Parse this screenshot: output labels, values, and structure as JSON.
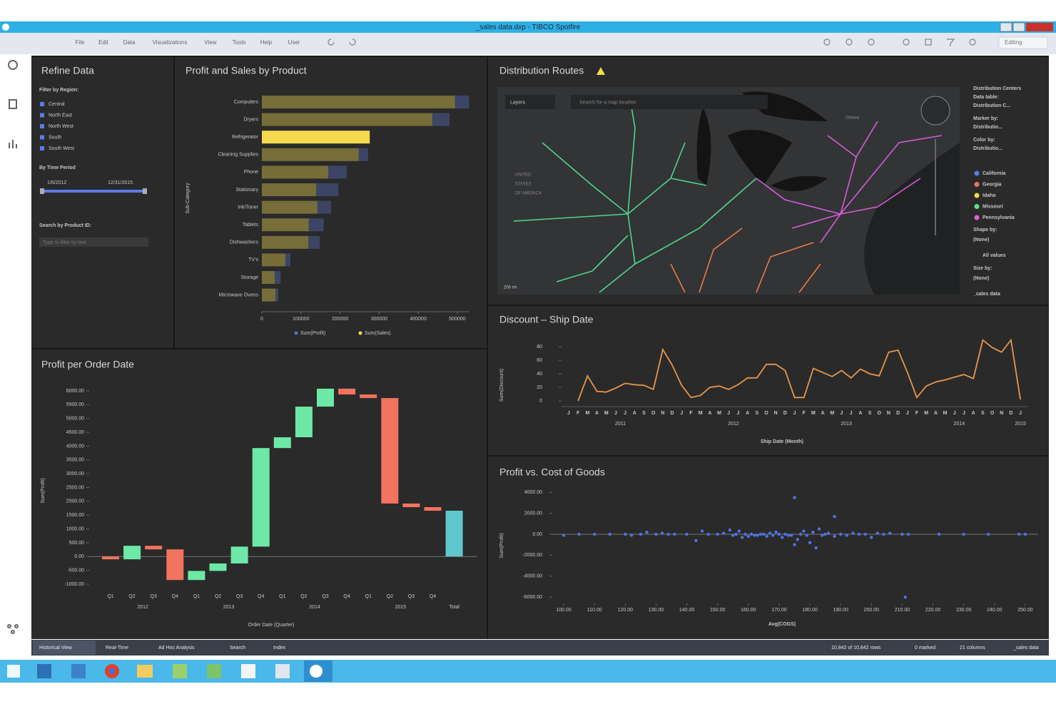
{
  "window": {
    "title": "_sales data.dxp - TIBCO Spotfire",
    "menu": [
      "File",
      "Edit",
      "Data",
      "Visualizations",
      "View",
      "Tools",
      "Help",
      "User"
    ],
    "mode": "Editing"
  },
  "refine": {
    "title": "Refine Data",
    "region_label": "Filter by Region:",
    "regions": [
      "Central",
      "North East",
      "North West",
      "South",
      "South West"
    ],
    "time_label": "By Time Period",
    "start": "1/6/2012",
    "end": "12/31/2015",
    "search_label": "Search by Product ID:",
    "search_placeholder": "Type to filter by text"
  },
  "map": {
    "title": "Distribution Routes",
    "layers": "Layers",
    "search": "Search for a map location",
    "country": [
      "UNITED",
      "STATES",
      "OF AMERICA"
    ],
    "city": "Ottawa",
    "scale": "200 mi",
    "legend": {
      "header": [
        "Distribution Centers",
        "Data table:",
        "Distribution C...",
        "Marker by:",
        "Distributio...",
        "Color by:",
        "Distributio..."
      ],
      "items": [
        {
          "name": "California",
          "color": "#5b7be8"
        },
        {
          "name": "Georgia",
          "color": "#f07060"
        },
        {
          "name": "Idaho",
          "color": "#f5d94e"
        },
        {
          "name": "Missouri",
          "color": "#5ee08a"
        },
        {
          "name": "Pennsylvania",
          "color": "#e060e0"
        }
      ],
      "footer": [
        "Shape by:",
        "(None)",
        "All values",
        "Size by:",
        "(None)",
        "_sales data"
      ]
    }
  },
  "chart_data": [
    {
      "type": "bar",
      "orientation": "horizontal",
      "stacked": true,
      "title": "Profit and Sales by Product",
      "y_label": "Sub-Category",
      "categories": [
        "Computers",
        "Dryers",
        "Refrigerator",
        "Cleaning Supplies",
        "Phone",
        "Stationary",
        "Ink/Toner",
        "Tablets",
        "Dishwashers",
        "TV's",
        "Storage",
        "Microwave Ovens"
      ],
      "highlighted": "Refrigerator",
      "series": [
        {
          "name": "Sum(Sales)",
          "color": "#f5d94e",
          "values": [
            494000,
            436000,
            276000,
            248000,
            170000,
            139000,
            142000,
            120000,
            119000,
            60000,
            33000,
            35000
          ]
        },
        {
          "name": "Sum(Profit)",
          "color": "#5b70c8",
          "values": [
            36000,
            44000,
            0,
            24000,
            47000,
            57000,
            35000,
            38000,
            29000,
            13000,
            15000,
            7000
          ]
        }
      ],
      "xlim": [
        0,
        530000
      ],
      "xticks": [
        0,
        100000,
        200000,
        300000,
        400000,
        500000
      ]
    },
    {
      "type": "waterfall",
      "title": "Profit per Order Date",
      "y_label": "Sum(Profit)",
      "x_label": "Order Date (Quarter)",
      "categories": [
        "Q1",
        "Q2",
        "Q3",
        "Q4",
        "Q1",
        "Q2",
        "Q3",
        "Q4",
        "Q1",
        "Q2",
        "Q3",
        "Q4",
        "Q1",
        "Q2",
        "Q3",
        "Q4",
        "Total"
      ],
      "groups": [
        "2012",
        "2013",
        "2014",
        "2015"
      ],
      "values": [
        -100,
        490,
        -130,
        -1110,
        330,
        270,
        610,
        3570,
        390,
        1110,
        650,
        -210,
        -130,
        -3820,
        -130,
        -130,
        1660
      ],
      "last_is_total": true,
      "increase_color": "#6ee8a6",
      "decrease_color": "#f2735f",
      "total_color": "#5ec8cc",
      "ylim": [
        -1150,
        6150
      ],
      "yticks": [
        {
          "value": 6000,
          "label": "6000.00"
        },
        {
          "value": 5500,
          "label": "5500.00"
        },
        {
          "value": 5000,
          "label": "5000.00"
        },
        {
          "value": 4500,
          "label": "4500.00"
        },
        {
          "value": 4000,
          "label": "4000.00"
        },
        {
          "value": 3500,
          "label": "3500.00"
        },
        {
          "value": 3000,
          "label": "3000.00"
        },
        {
          "value": 2500,
          "label": "2500.00"
        },
        {
          "value": 2000,
          "label": "2000.00"
        },
        {
          "value": 1500,
          "label": "1500.00"
        },
        {
          "value": 1000,
          "label": "1000.00"
        },
        {
          "value": 500,
          "label": "500.00"
        },
        {
          "value": 0,
          "label": "0.00"
        },
        {
          "value": -500,
          "label": "-500.00"
        },
        {
          "value": -1000,
          "label": "-1000.00"
        }
      ]
    },
    {
      "type": "line",
      "title": "Discount – Ship Date",
      "y_label": "Sum(Discount)",
      "x_label": "Ship Date (Month)",
      "categories": [
        "J",
        "F",
        "M",
        "A",
        "M",
        "J",
        "J",
        "A",
        "S",
        "O",
        "N",
        "D",
        "J",
        "F",
        "M",
        "A",
        "M",
        "J",
        "J",
        "A",
        "S",
        "O",
        "N",
        "D",
        "J",
        "F",
        "M",
        "A",
        "M",
        "J",
        "J",
        "A",
        "S",
        "O",
        "N",
        "D",
        "J",
        "F",
        "M",
        "A",
        "M",
        "J",
        "J",
        "A",
        "S",
        "O",
        "N",
        "D",
        "J"
      ],
      "groups": [
        "2011",
        "2012",
        "2013",
        "2014",
        "2015"
      ],
      "color": "#e8954a",
      "values": [
        null,
        0,
        37,
        14,
        13,
        19,
        26,
        24,
        23,
        17,
        76,
        53,
        23,
        5,
        8,
        20,
        22,
        17,
        24,
        34,
        34,
        54,
        54,
        45,
        5,
        5,
        48,
        42,
        36,
        45,
        34,
        47,
        40,
        37,
        72,
        75,
        42,
        5,
        22,
        28,
        31,
        35,
        39,
        33,
        90,
        79,
        72,
        90,
        2
      ],
      "ylim": [
        0,
        95
      ],
      "yticks": [
        0,
        20,
        40,
        60,
        80
      ]
    },
    {
      "type": "scatter",
      "title": "Profit vs. Cost of Goods",
      "y_label": "Sum(Profit)",
      "x_label": "Avg(COGS)",
      "color": "#4f72e6",
      "x": [
        100,
        105,
        110,
        115,
        120,
        122,
        125,
        127,
        130,
        132,
        134,
        136,
        140,
        143,
        145,
        147,
        150,
        152,
        154,
        155,
        156,
        157,
        158,
        159,
        160,
        161,
        162,
        163,
        164,
        165,
        166,
        167,
        168,
        169,
        170,
        171,
        172,
        173,
        174,
        175,
        175,
        176,
        177,
        178,
        179,
        180,
        181,
        182,
        183,
        184,
        185,
        186,
        188,
        188,
        190,
        192,
        194,
        196,
        198,
        200,
        202,
        204,
        206,
        210,
        211,
        212,
        222,
        230,
        238,
        248,
        250
      ],
      "values": [
        -100,
        0,
        0,
        0,
        0,
        -100,
        0,
        200,
        0,
        100,
        0,
        0,
        0,
        -600,
        300,
        0,
        0,
        100,
        400,
        -100,
        0,
        300,
        -300,
        0,
        -200,
        0,
        -100,
        -100,
        0,
        0,
        -200,
        100,
        -100,
        200,
        0,
        -300,
        0,
        -100,
        -100,
        -1000,
        3500,
        -500,
        0,
        300,
        -100,
        -800,
        200,
        -1300,
        500,
        -100,
        0,
        100,
        -200,
        1700,
        0,
        -100,
        100,
        0,
        0,
        -300,
        100,
        0,
        100,
        0,
        -6000,
        0,
        0,
        0,
        0,
        0,
        0
      ],
      "xlim": [
        97,
        253
      ],
      "xticks": [
        {
          "value": 100,
          "label": "100.00"
        },
        {
          "value": 110,
          "label": "110.00"
        },
        {
          "value": 120,
          "label": "120.00"
        },
        {
          "value": 130,
          "label": "130.00"
        },
        {
          "value": 140,
          "label": "140.00"
        },
        {
          "value": 150,
          "label": "150.00"
        },
        {
          "value": 160,
          "label": "160.00"
        },
        {
          "value": 170,
          "label": "170.00"
        },
        {
          "value": 180,
          "label": "180.00"
        },
        {
          "value": 190,
          "label": "190.00"
        },
        {
          "value": 200,
          "label": "200.00"
        },
        {
          "value": 210,
          "label": "210.00"
        },
        {
          "value": 220,
          "label": "220.00"
        },
        {
          "value": 230,
          "label": "230.00"
        },
        {
          "value": 240,
          "label": "240.00"
        },
        {
          "value": 250,
          "label": "250.00"
        }
      ],
      "ylim": [
        -6600,
        4600
      ],
      "yticks": [
        {
          "value": 4000,
          "label": "4000.00"
        },
        {
          "value": 2000,
          "label": "2000.00"
        },
        {
          "value": 0,
          "label": "0.00"
        },
        {
          "value": -2000,
          "label": "-2000.00"
        },
        {
          "value": -4000,
          "label": "-4000.00"
        },
        {
          "value": -6000,
          "label": "-6000.00"
        }
      ]
    }
  ],
  "tabs": [
    "Historical View",
    "Real-Time",
    "Ad Hoc Analysis",
    "Search",
    "Index"
  ],
  "status": [
    "10,842 of 10,842 rows",
    "0 marked",
    "21 columns",
    "_sales data"
  ]
}
